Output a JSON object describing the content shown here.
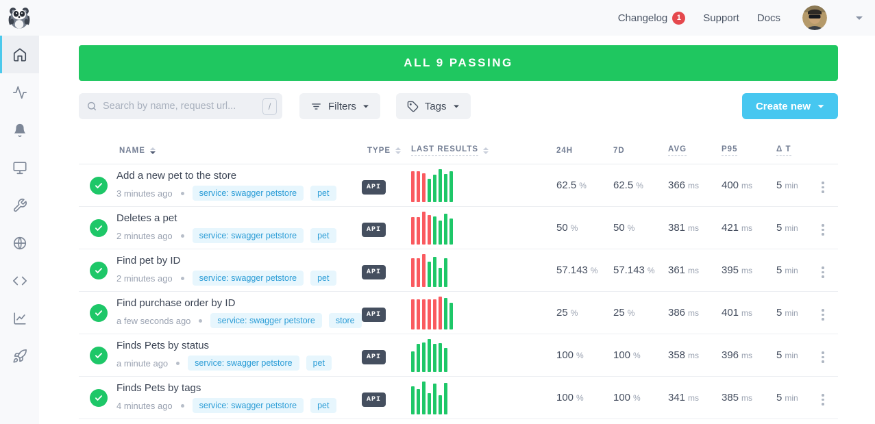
{
  "topbar": {
    "brand_icon": "raccoon-logo",
    "nav": [
      {
        "label": "Changelog",
        "badge": "1"
      },
      {
        "label": "Support",
        "badge": null
      },
      {
        "label": "Docs",
        "badge": null
      }
    ]
  },
  "sidebar": {
    "items": [
      {
        "icon": "home",
        "active": true
      },
      {
        "icon": "activity",
        "active": false
      },
      {
        "icon": "bell",
        "active": false
      },
      {
        "icon": "monitor",
        "active": false
      },
      {
        "icon": "wrench",
        "active": false
      },
      {
        "icon": "globe",
        "active": false
      },
      {
        "icon": "code",
        "active": false
      },
      {
        "icon": "chart",
        "active": false
      },
      {
        "icon": "rocket",
        "active": false
      }
    ]
  },
  "banner": {
    "text": "ALL 9 PASSING"
  },
  "toolbar": {
    "search_placeholder": "Search by name, request url...",
    "search_shortcut": "/",
    "filters_label": "Filters",
    "tags_label": "Tags",
    "create_label": "Create new"
  },
  "table": {
    "header": {
      "name": "NAME",
      "type": "TYPE",
      "last_results": "LAST RESULTS",
      "h24": "24H",
      "d7": "7D",
      "avg": "AVG",
      "p95": "P95",
      "dt": "Δ T"
    },
    "units": {
      "percent": "%",
      "ms": "ms",
      "min": "min"
    },
    "rows": [
      {
        "name": "Add a new pet to the store",
        "time": "3 minutes ago",
        "tags": [
          "service: swagger petstore",
          "pet"
        ],
        "type": "API",
        "bars": [
          [
            "r",
            93
          ],
          [
            "r",
            93
          ],
          [
            "r",
            87
          ],
          [
            "g",
            70
          ],
          [
            "g",
            83
          ],
          [
            "g",
            100
          ],
          [
            "g",
            85
          ],
          [
            "g",
            94
          ]
        ],
        "h24": "62.5",
        "d7": "62.5",
        "avg": "366",
        "p95": "400",
        "dt": "5"
      },
      {
        "name": "Deletes a pet",
        "time": "2 minutes ago",
        "tags": [
          "service: swagger petstore",
          "pet"
        ],
        "type": "API",
        "bars": [
          [
            "r",
            84
          ],
          [
            "r",
            84
          ],
          [
            "r",
            100
          ],
          [
            "r",
            89
          ],
          [
            "g",
            86
          ],
          [
            "g",
            72
          ],
          [
            "g",
            94
          ],
          [
            "g",
            80
          ]
        ],
        "h24": "50",
        "d7": "50",
        "avg": "381",
        "p95": "421",
        "dt": "5"
      },
      {
        "name": "Find pet by ID",
        "time": "2 minutes ago",
        "tags": [
          "service: swagger petstore",
          "pet"
        ],
        "type": "API",
        "bars": [
          [
            "r",
            88
          ],
          [
            "r",
            88
          ],
          [
            "r",
            100
          ],
          [
            "g",
            78
          ],
          [
            "g",
            92
          ],
          [
            "g",
            58
          ],
          [
            "g",
            88
          ]
        ],
        "h24": "57.143",
        "d7": "57.143",
        "avg": "361",
        "p95": "395",
        "dt": "5"
      },
      {
        "name": "Find purchase order by ID",
        "time": "a few seconds ago",
        "tags": [
          "service: swagger petstore",
          "store"
        ],
        "type": "API",
        "bars": [
          [
            "r",
            92
          ],
          [
            "r",
            92
          ],
          [
            "r",
            92
          ],
          [
            "r",
            92
          ],
          [
            "r",
            92
          ],
          [
            "r",
            100
          ],
          [
            "g",
            96
          ],
          [
            "g",
            82
          ]
        ],
        "h24": "25",
        "d7": "25",
        "avg": "386",
        "p95": "401",
        "dt": "5"
      },
      {
        "name": "Finds Pets by status",
        "time": "a minute ago",
        "tags": [
          "service: swagger petstore",
          "pet"
        ],
        "type": "API",
        "bars": [
          [
            "g",
            62
          ],
          [
            "g",
            85
          ],
          [
            "g",
            90
          ],
          [
            "g",
            100
          ],
          [
            "g",
            85
          ],
          [
            "g",
            88
          ],
          [
            "g",
            73
          ]
        ],
        "h24": "100",
        "d7": "100",
        "avg": "358",
        "p95": "396",
        "dt": "5"
      },
      {
        "name": "Finds Pets by tags",
        "time": "4 minutes ago",
        "tags": [
          "service: swagger petstore",
          "pet"
        ],
        "type": "API",
        "bars": [
          [
            "g",
            86
          ],
          [
            "g",
            78
          ],
          [
            "g",
            100
          ],
          [
            "g",
            64
          ],
          [
            "g",
            94
          ],
          [
            "g",
            58
          ],
          [
            "g",
            96
          ]
        ],
        "h24": "100",
        "d7": "100",
        "avg": "341",
        "p95": "385",
        "dt": "5"
      }
    ]
  },
  "colors": {
    "banner_green": "#1fc760",
    "pass_green": "#1ec768",
    "fail_red": "#fa5a5f",
    "create_blue": "#47c7f0",
    "badge_red": "#e5484d"
  }
}
